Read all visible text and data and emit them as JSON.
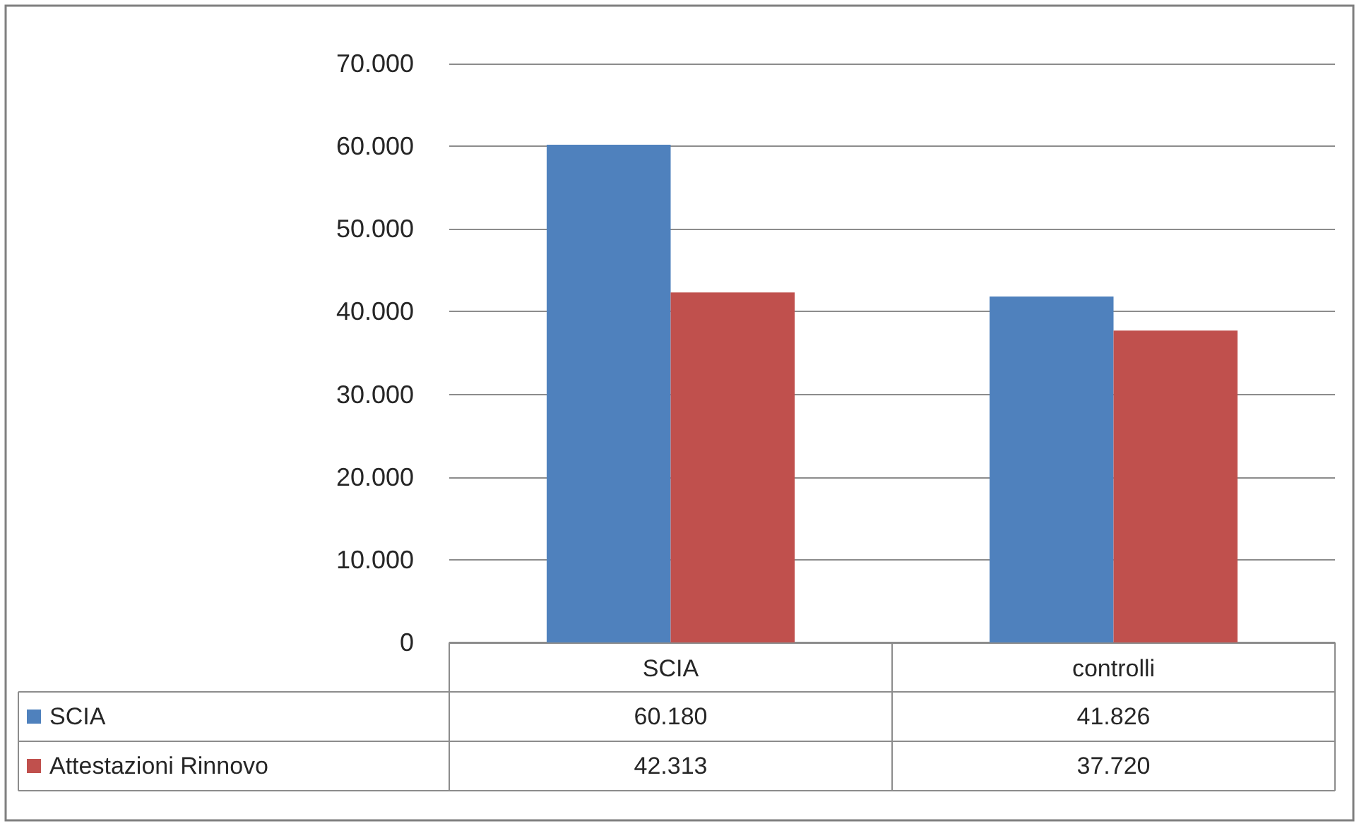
{
  "chart_data": {
    "type": "bar",
    "categories": [
      "SCIA",
      "controlli"
    ],
    "series": [
      {
        "name": "SCIA",
        "color": "#4f81bd",
        "values": [
          60180,
          41826
        ],
        "value_labels": [
          "60.180",
          "41.826"
        ]
      },
      {
        "name": "Attestazioni Rinnovo",
        "color": "#c0504d",
        "values": [
          42313,
          37720
        ],
        "value_labels": [
          "42.313",
          "37.720"
        ]
      }
    ],
    "ylim": [
      0,
      70000
    ],
    "yticks": [
      0,
      {
        "value": 10000,
        "label": "10.000"
      },
      {
        "value": 20000,
        "label": "20.000"
      },
      {
        "value": 30000,
        "label": "30.000"
      },
      {
        "value": 40000,
        "label": "40.000"
      },
      {
        "value": 50000,
        "label": "50.000"
      },
      {
        "value": 60000,
        "label": "60.000"
      },
      {
        "value": 70000,
        "label": "70.000"
      }
    ],
    "grid": "y",
    "legend": "bottom"
  }
}
